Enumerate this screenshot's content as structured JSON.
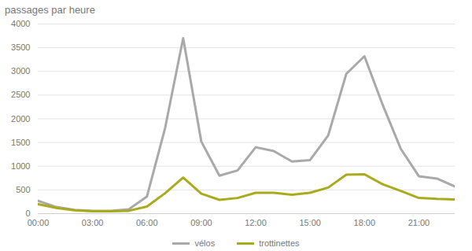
{
  "chart_data": {
    "type": "line",
    "y_label": "passages par heure",
    "x": [
      0,
      1,
      2,
      3,
      4,
      5,
      6,
      7,
      8,
      9,
      10,
      11,
      12,
      13,
      14,
      15,
      16,
      17,
      18,
      19,
      20,
      21,
      22,
      23
    ],
    "series": [
      {
        "name": "vélos",
        "color": "#a9a9a9",
        "values": [
          270,
          140,
          80,
          60,
          60,
          90,
          360,
          1800,
          3700,
          1520,
          800,
          910,
          1400,
          1320,
          1100,
          1130,
          1650,
          2950,
          3320,
          2300,
          1370,
          790,
          740,
          570
        ]
      },
      {
        "name": "trottinettes",
        "color": "#a9ab1c",
        "values": [
          200,
          120,
          70,
          50,
          50,
          60,
          150,
          430,
          760,
          420,
          290,
          330,
          440,
          440,
          400,
          440,
          550,
          820,
          830,
          620,
          480,
          330,
          310,
          300
        ]
      }
    ],
    "xlim": [
      0,
      23
    ],
    "xticks": [
      {
        "value": 0,
        "label": "00:00"
      },
      {
        "value": 3,
        "label": "03:00"
      },
      {
        "value": 6,
        "label": "06:00"
      },
      {
        "value": 9,
        "label": "09:00"
      },
      {
        "value": 12,
        "label": "12:00"
      },
      {
        "value": 15,
        "label": "15:00"
      },
      {
        "value": 18,
        "label": "18:00"
      },
      {
        "value": 21,
        "label": "21:00"
      }
    ],
    "ylim": [
      0,
      4000
    ],
    "yticks": [
      0,
      500,
      1000,
      1500,
      2000,
      2500,
      3000,
      3500,
      4000
    ],
    "grid": true,
    "legend": "bottom"
  }
}
